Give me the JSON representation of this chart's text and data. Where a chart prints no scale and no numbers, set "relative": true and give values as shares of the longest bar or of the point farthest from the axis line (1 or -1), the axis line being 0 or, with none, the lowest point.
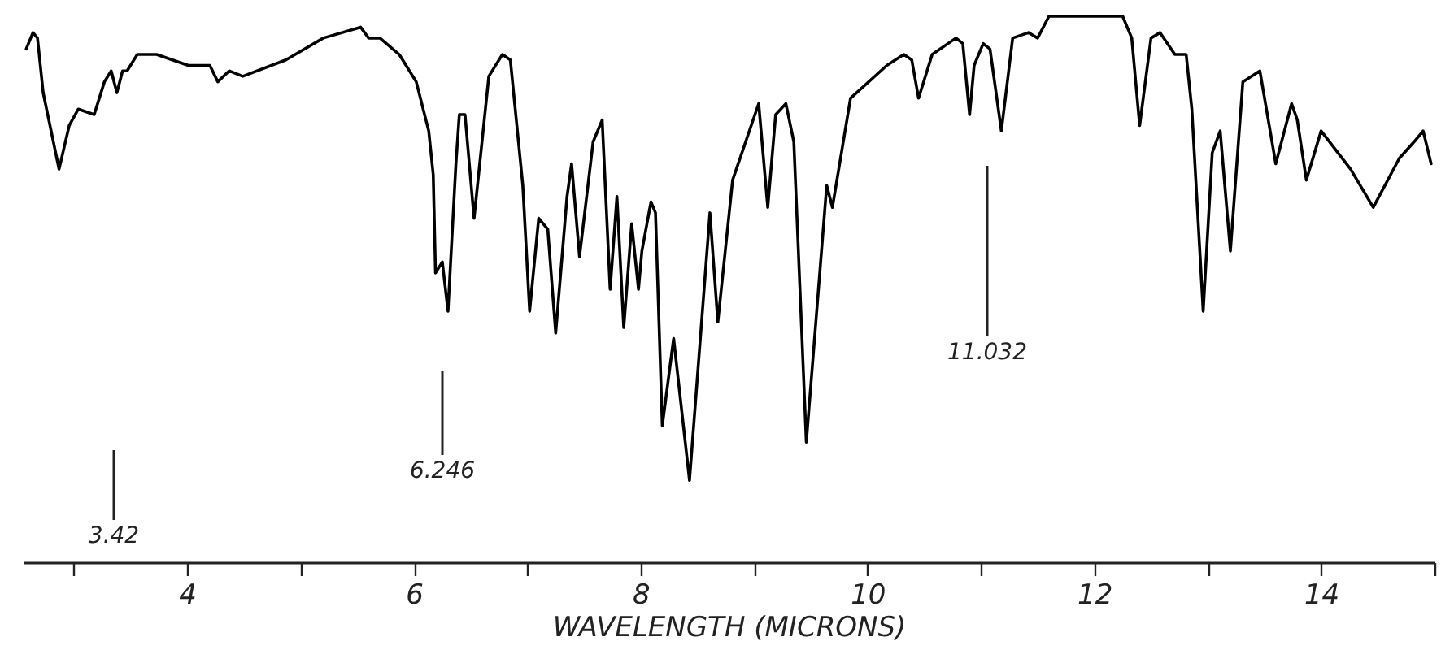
{
  "chart_data": {
    "type": "line",
    "relative": true,
    "xlabel": "WAVELENGTH (MICRONS)",
    "xlim": [
      2.55,
      15
    ],
    "xticks": [
      {
        "value": 3,
        "label": null
      },
      4,
      {
        "value": 5,
        "label": null
      },
      6,
      {
        "value": 7,
        "label": null
      },
      8,
      {
        "value": 9,
        "label": null
      },
      10,
      {
        "value": 11,
        "label": null
      },
      12,
      {
        "value": 13,
        "label": null
      },
      14,
      {
        "value": 15,
        "label": null
      }
    ],
    "grid": false,
    "marker": "none",
    "line_style": "solid",
    "annotations": [
      "3.42",
      "6.246",
      "11.032"
    ],
    "series": [
      {
        "color": "#000000",
        "x": [
          2.58,
          2.64,
          2.68,
          2.73,
          2.87,
          2.96,
          3.04,
          3.18,
          3.27,
          3.33,
          3.38,
          3.43,
          3.47,
          3.56,
          3.73,
          4.01,
          4.2,
          4.27,
          4.37,
          4.49,
          4.87,
          5.2,
          5.53,
          5.6,
          5.7,
          5.87,
          6.02,
          6.13,
          6.17,
          6.19,
          6.25,
          6.3,
          6.37,
          6.4,
          6.45,
          6.53,
          6.66,
          6.78,
          6.85,
          6.96,
          7.02,
          7.1,
          7.18,
          7.25,
          7.35,
          7.39,
          7.46,
          7.58,
          7.66,
          7.73,
          7.79,
          7.85,
          7.92,
          7.98,
          8.01,
          8.09,
          8.13,
          8.19,
          8.29,
          8.43,
          8.61,
          8.68,
          8.81,
          9.04,
          9.12,
          9.19,
          9.28,
          9.35,
          9.46,
          9.64,
          9.69,
          9.85,
          10.17,
          10.32,
          10.39,
          10.45,
          10.57,
          10.78,
          10.84,
          10.9,
          10.94,
          11.02,
          11.08,
          11.18,
          11.28,
          11.42,
          11.5,
          11.6,
          12.25,
          12.33,
          12.4,
          12.5,
          12.58,
          12.71,
          12.81,
          12.86,
          12.96,
          13.04,
          13.11,
          13.2,
          13.31,
          13.46,
          13.6,
          13.74,
          13.79,
          13.87,
          14.0,
          14.26,
          14.46,
          14.69,
          14.82,
          14.9,
          14.97
        ],
        "values": [
          0.94,
          0.97,
          0.96,
          0.86,
          0.72,
          0.8,
          0.83,
          0.82,
          0.88,
          0.9,
          0.86,
          0.9,
          0.9,
          0.93,
          0.93,
          0.91,
          0.91,
          0.88,
          0.9,
          0.89,
          0.92,
          0.96,
          0.98,
          0.96,
          0.96,
          0.93,
          0.88,
          0.79,
          0.71,
          0.53,
          0.55,
          0.46,
          0.73,
          0.82,
          0.82,
          0.63,
          0.89,
          0.93,
          0.92,
          0.69,
          0.46,
          0.63,
          0.61,
          0.42,
          0.67,
          0.73,
          0.56,
          0.77,
          0.81,
          0.5,
          0.67,
          0.43,
          0.62,
          0.5,
          0.57,
          0.66,
          0.64,
          0.25,
          0.41,
          0.15,
          0.64,
          0.44,
          0.7,
          0.84,
          0.65,
          0.82,
          0.84,
          0.77,
          0.22,
          0.69,
          0.65,
          0.85,
          0.91,
          0.93,
          0.92,
          0.85,
          0.93,
          0.96,
          0.95,
          0.82,
          0.91,
          0.95,
          0.94,
          0.79,
          0.96,
          0.97,
          0.96,
          1,
          1,
          0.96,
          0.8,
          0.96,
          0.97,
          0.93,
          0.93,
          0.83,
          0.46,
          0.75,
          0.79,
          0.57,
          0.88,
          0.9,
          0.73,
          0.84,
          0.81,
          0.7,
          0.79,
          0.72,
          0.65,
          0.74,
          0.77,
          0.79,
          0.73
        ]
      }
    ]
  }
}
